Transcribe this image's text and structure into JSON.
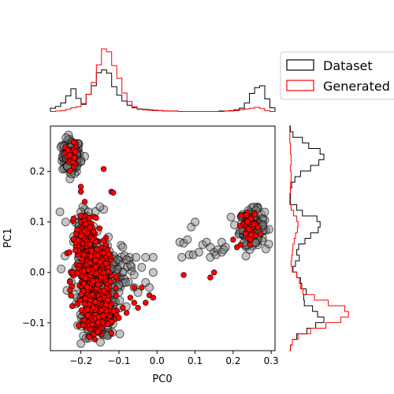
{
  "chart_data": {
    "type": "scatter",
    "xlabel": "PC0",
    "ylabel": "PC1",
    "xlim": [
      -0.28,
      0.31
    ],
    "ylim": [
      -0.155,
      0.29
    ],
    "x_ticks": [
      -0.2,
      -0.1,
      0.0,
      0.1,
      0.2,
      0.3
    ],
    "x_tick_labels": [
      "−0.2",
      "−0.1",
      "0.0",
      "0.1",
      "0.2",
      "0.3"
    ],
    "y_ticks": [
      -0.1,
      0.0,
      0.1,
      0.2
    ],
    "y_tick_labels": [
      "−0.1",
      "0.0",
      "0.1",
      "0.2"
    ],
    "grid": false,
    "legend": {
      "placement": "top-right",
      "entries": [
        {
          "label": "Dataset",
          "color": "#000000"
        },
        {
          "label": "Generated",
          "color": "#ff0000"
        }
      ]
    },
    "series": [
      {
        "name": "Dataset",
        "marker_face": "#808080",
        "marker_edge": "#000000",
        "opacity": 0.45,
        "clusters": [
          {
            "cx": -0.225,
            "cy": 0.23,
            "sx": 0.012,
            "sy": 0.017,
            "n": 150
          },
          {
            "cx": 0.25,
            "cy": 0.09,
            "sx": 0.016,
            "sy": 0.017,
            "n": 170
          },
          {
            "cx": -0.15,
            "cy": -0.085,
            "sx": 0.022,
            "sy": 0.022,
            "n": 220
          },
          {
            "cx": -0.19,
            "cy": 0.07,
            "sx": 0.014,
            "sy": 0.025,
            "n": 80
          },
          {
            "cx": -0.15,
            "cy": 0.0,
            "sx": 0.035,
            "sy": 0.03,
            "n": 200
          }
        ],
        "points": [
          [
            -0.19,
            0.125
          ],
          [
            -0.19,
            0.11
          ],
          [
            -0.195,
            0.13
          ],
          [
            -0.18,
            0.12
          ],
          [
            -0.2,
            0.12
          ],
          [
            -0.08,
            0.025
          ],
          [
            -0.07,
            0.015
          ],
          [
            -0.055,
            0.03
          ],
          [
            -0.03,
            0.03
          ],
          [
            -0.01,
            0.03
          ],
          [
            -0.06,
            -0.005
          ],
          [
            -0.04,
            0.01
          ],
          [
            -0.03,
            -0.02
          ],
          [
            -0.01,
            0.0
          ],
          [
            -0.06,
            -0.03
          ],
          [
            -0.02,
            -0.03
          ],
          [
            -0.05,
            -0.04
          ],
          [
            -0.1,
            -0.025
          ],
          [
            -0.12,
            -0.04
          ],
          [
            -0.09,
            0.05
          ],
          [
            0.06,
            0.06
          ],
          [
            0.07,
            0.058
          ],
          [
            0.08,
            0.065
          ],
          [
            0.09,
            0.09
          ],
          [
            0.1,
            0.1
          ],
          [
            0.065,
            0.03
          ],
          [
            0.085,
            0.035
          ],
          [
            0.095,
            0.035
          ],
          [
            0.11,
            0.04
          ],
          [
            0.12,
            0.055
          ],
          [
            0.13,
            0.06
          ],
          [
            0.14,
            0.05
          ],
          [
            0.15,
            0.04
          ],
          [
            0.16,
            0.045
          ],
          [
            0.17,
            0.06
          ],
          [
            0.18,
            0.05
          ],
          [
            0.14,
            0.03
          ],
          [
            0.155,
            0.035
          ],
          [
            0.17,
            0.04
          ],
          [
            0.175,
            0.045
          ],
          [
            -0.255,
            0.12
          ],
          [
            -0.24,
            0.1
          ],
          [
            -0.14,
            0.125
          ],
          [
            -0.15,
            0.13
          ],
          [
            -0.235,
            0.21
          ],
          [
            -0.21,
            0.21
          ],
          [
            -0.19,
            0.23
          ],
          [
            -0.2,
            0.22
          ],
          [
            -0.225,
            0.195
          ],
          [
            -0.245,
            0.25
          ]
        ]
      },
      {
        "name": "Generated",
        "marker_face": "#ff0000",
        "marker_edge": "#000000",
        "opacity": 1.0,
        "clusters": [
          {
            "cx": -0.225,
            "cy": 0.23,
            "sx": 0.008,
            "sy": 0.013,
            "n": 40
          },
          {
            "cx": 0.245,
            "cy": 0.09,
            "sx": 0.012,
            "sy": 0.015,
            "n": 50
          },
          {
            "cx": -0.155,
            "cy": -0.07,
            "sx": 0.018,
            "sy": 0.02,
            "n": 320
          },
          {
            "cx": -0.17,
            "cy": 0.0,
            "sx": 0.022,
            "sy": 0.03,
            "n": 300
          },
          {
            "cx": -0.19,
            "cy": 0.07,
            "sx": 0.012,
            "sy": 0.02,
            "n": 120
          }
        ],
        "points": [
          [
            -0.14,
            0.205
          ],
          [
            -0.12,
            0.16
          ],
          [
            -0.115,
            0.158
          ],
          [
            -0.2,
            0.17
          ],
          [
            -0.2,
            0.16
          ],
          [
            -0.19,
            0.14
          ],
          [
            -0.16,
            0.108
          ],
          [
            -0.16,
            0.06
          ],
          [
            -0.07,
            -0.05
          ],
          [
            -0.06,
            -0.06
          ],
          [
            -0.02,
            -0.045
          ],
          [
            -0.01,
            -0.05
          ],
          [
            -0.03,
            -0.06
          ],
          [
            -0.05,
            -0.07
          ],
          [
            -0.09,
            -0.07
          ],
          [
            -0.1,
            -0.09
          ],
          [
            -0.08,
            -0.08
          ],
          [
            -0.12,
            -0.12
          ],
          [
            -0.04,
            -0.03
          ],
          [
            -0.06,
            -0.03
          ],
          [
            0.07,
            -0.005
          ],
          [
            0.15,
            0.0
          ],
          [
            0.14,
            -0.01
          ],
          [
            0.2,
            0.065
          ],
          [
            0.21,
            0.05
          ],
          [
            0.22,
            0.055
          ],
          [
            0.245,
            0.055
          ]
        ]
      }
    ],
    "marginals": {
      "top": {
        "axis": "PC0",
        "bin_edges": [
          -0.28,
          0.31
        ],
        "Dataset": [
          0.09,
          0.13,
          0.21,
          0.38,
          0.55,
          0.32,
          0.18,
          0.42,
          0.62,
          0.93,
          1.0,
          0.92,
          0.6,
          0.4,
          0.26,
          0.16,
          0.1,
          0.07,
          0.06,
          0.05,
          0.04,
          0.03,
          0.02,
          0.02,
          0.02,
          0.01,
          0.01,
          0.01,
          0.01,
          0.01,
          0.01,
          0.01,
          0.01,
          0.02,
          0.02,
          0.03,
          0.05,
          0.09,
          0.21,
          0.44,
          0.58,
          0.62,
          0.31,
          0.1
        ],
        "Generated": [
          0.01,
          0.02,
          0.03,
          0.06,
          0.1,
          0.12,
          0.2,
          0.42,
          0.7,
          1.12,
          1.5,
          1.43,
          1.1,
          0.8,
          0.45,
          0.25,
          0.12,
          0.06,
          0.05,
          0.04,
          0.03,
          0.03,
          0.02,
          0.02,
          0.02,
          0.01,
          0.01,
          0.01,
          0.01,
          0.01,
          0.01,
          0.01,
          0.01,
          0.01,
          0.02,
          0.02,
          0.03,
          0.05,
          0.07,
          0.09,
          0.11,
          0.08,
          0.03,
          0.01
        ]
      },
      "right": {
        "axis": "PC1",
        "bin_edges": [
          -0.155,
          0.29
        ],
        "Dataset": [
          0.02,
          0.05,
          0.12,
          0.28,
          0.42,
          0.55,
          0.45,
          0.37,
          0.24,
          0.23,
          0.27,
          0.2,
          0.18,
          0.12,
          0.06,
          0.1,
          0.16,
          0.12,
          0.15,
          0.25,
          0.34,
          0.46,
          0.49,
          0.44,
          0.21,
          0.12,
          0.02,
          0.02,
          0.02,
          0.04,
          0.09,
          0.18,
          0.34,
          0.47,
          0.55,
          0.49,
          0.31,
          0.21,
          0.06,
          0.02
        ],
        "Generated": [
          0.02,
          0.05,
          0.14,
          0.34,
          0.58,
          0.82,
          0.94,
          0.88,
          0.62,
          0.4,
          0.22,
          0.18,
          0.16,
          0.12,
          0.05,
          0.03,
          0.04,
          0.05,
          0.06,
          0.08,
          0.1,
          0.13,
          0.14,
          0.12,
          0.07,
          0.03,
          0.01,
          0.01,
          0.02,
          0.02,
          0.03,
          0.03,
          0.02,
          0.03,
          0.03,
          0.02,
          0.02,
          0.01,
          0.01,
          0.01
        ]
      }
    }
  }
}
